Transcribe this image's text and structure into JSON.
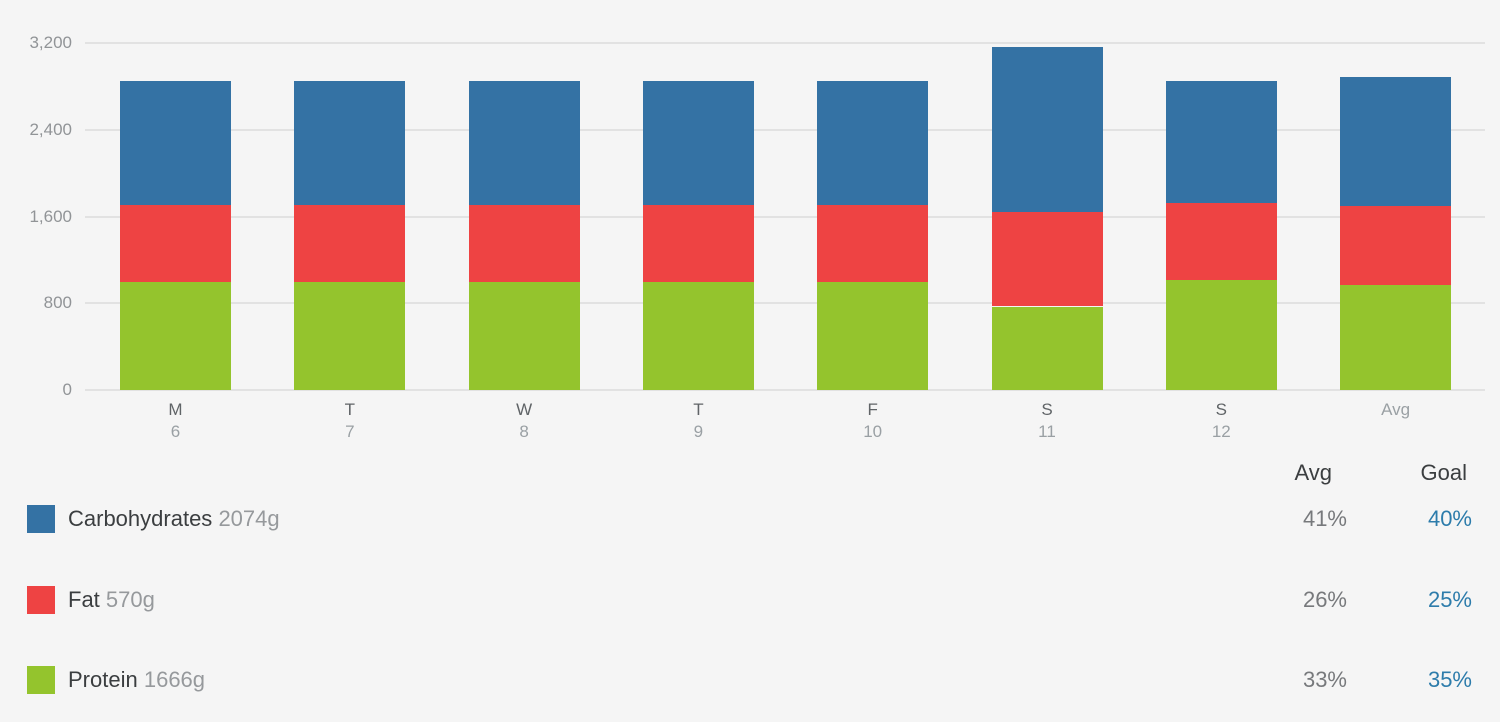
{
  "chart_data": {
    "type": "bar",
    "stacked": true,
    "title": "",
    "xlabel": "",
    "ylabel": "",
    "grid": true,
    "legend_position": "bottom",
    "ylim": [
      0,
      3200
    ],
    "yticks": [
      {
        "value": 3200,
        "label": "3,200"
      },
      {
        "value": 2400,
        "label": "2,400"
      },
      {
        "value": 1600,
        "label": "1,600"
      },
      {
        "value": 800,
        "label": "800"
      },
      {
        "value": 0,
        "label": "0"
      }
    ],
    "categories": [
      {
        "day": "M",
        "date": "6"
      },
      {
        "day": "T",
        "date": "7"
      },
      {
        "day": "W",
        "date": "8"
      },
      {
        "day": "T",
        "date": "9"
      },
      {
        "day": "F",
        "date": "10"
      },
      {
        "day": "S",
        "date": "11"
      },
      {
        "day": "S",
        "date": "12"
      },
      {
        "day": "Avg",
        "date": ""
      }
    ],
    "series": [
      {
        "name": "Protein",
        "color": "#94c42d",
        "values": [
          1000,
          1000,
          1000,
          1000,
          1000,
          770,
          1010,
          965
        ]
      },
      {
        "name": "Fat",
        "color": "#ee4343",
        "values": [
          710,
          710,
          710,
          710,
          710,
          875,
          710,
          735
        ]
      },
      {
        "name": "Carbohydrates",
        "color": "#3472a4",
        "values": [
          1135,
          1135,
          1135,
          1135,
          1135,
          1520,
          1125,
          1190
        ]
      }
    ]
  },
  "legend": {
    "columns": {
      "avg": "Avg",
      "goal": "Goal"
    },
    "rows": [
      {
        "name": "Carbohydrates",
        "amount": "2074g",
        "avg": "41%",
        "goal": "40%",
        "color": "#3472a4"
      },
      {
        "name": "Fat",
        "amount": "570g",
        "avg": "26%",
        "goal": "25%",
        "color": "#ee4343"
      },
      {
        "name": "Protein",
        "amount": "1666g",
        "avg": "33%",
        "goal": "35%",
        "color": "#94c42d"
      }
    ]
  },
  "colors": {
    "background": "#f5f5f5",
    "gridline": "#e2e2e2",
    "goal_text": "#2d7cab",
    "carbohydrates": "#3472a4",
    "fat": "#ee4343",
    "protein": "#94c42d"
  }
}
